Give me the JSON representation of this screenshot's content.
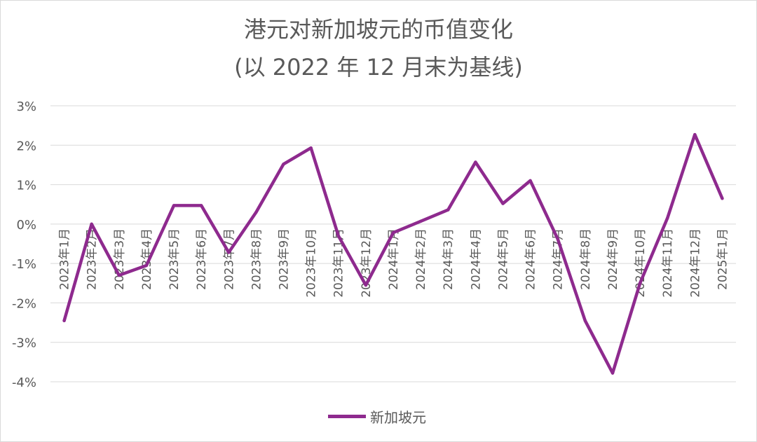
{
  "chart_data": {
    "type": "line",
    "title": "港元对新加坡元的币值变化",
    "subtitle": "(以 2022 年 12 月末为基线)",
    "xlabel": "",
    "ylabel": "",
    "categories": [
      "2023年1月",
      "2023年2月",
      "2023年3月",
      "2023年4月",
      "2023年5月",
      "2023年6月",
      "2023年7月",
      "2023年8月",
      "2023年9月",
      "2023年10月",
      "2023年11月",
      "2023年12月",
      "2024年1月",
      "2024年2月",
      "2024年3月",
      "2024年4月",
      "2024年5月",
      "2024年6月",
      "2024年7月",
      "2024年8月",
      "2024年9月",
      "2024年10月",
      "2024年11月",
      "2024年12月",
      "2025年1月"
    ],
    "series": [
      {
        "name": "新加坡元",
        "color": "#8e2a8e",
        "values": [
          -2.45,
          0.0,
          -1.3,
          -1.05,
          0.47,
          0.47,
          -0.72,
          0.3,
          1.52,
          1.93,
          -0.3,
          -1.55,
          -0.22,
          0.07,
          0.36,
          1.57,
          0.52,
          1.1,
          -0.38,
          -2.45,
          -3.78,
          -1.5,
          0.15,
          2.27,
          0.65
        ]
      }
    ],
    "ylim": [
      -4,
      3
    ],
    "yticks": [
      3,
      2,
      1,
      0,
      -1,
      -2,
      -3,
      -4
    ],
    "ytick_labels": [
      "3%",
      "2%",
      "1%",
      "0%",
      "-1%",
      "-2%",
      "-3%",
      "-4%"
    ],
    "grid": true,
    "legend": "bottom"
  }
}
